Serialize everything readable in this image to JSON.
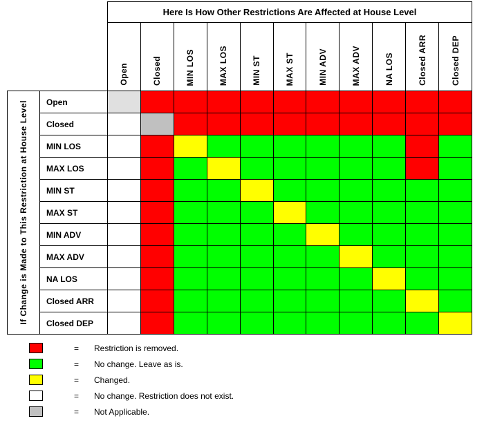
{
  "title": "Here Is How Other Restrictions Are Affected at House Level",
  "side_label": "If Change is Made to This Restriction at House Level",
  "equals_sign": "=",
  "columns": [
    "Open",
    "Closed",
    "MIN LOS",
    "MAX LOS",
    "MIN ST",
    "MAX ST",
    "MIN ADV",
    "MAX ADV",
    "NA LOS",
    "Closed ARR",
    "Closed DEP"
  ],
  "rows": [
    {
      "label": "Open",
      "cells": [
        "gray_light",
        "red",
        "red",
        "red",
        "red",
        "red",
        "red",
        "red",
        "red",
        "red",
        "red"
      ]
    },
    {
      "label": "Closed",
      "cells": [
        "white",
        "gray",
        "red",
        "red",
        "red",
        "red",
        "red",
        "red",
        "red",
        "red",
        "red"
      ]
    },
    {
      "label": "MIN LOS",
      "cells": [
        "white",
        "red",
        "yellow",
        "green",
        "green",
        "green",
        "green",
        "green",
        "green",
        "red",
        "green"
      ]
    },
    {
      "label": "MAX LOS",
      "cells": [
        "white",
        "red",
        "green",
        "yellow",
        "green",
        "green",
        "green",
        "green",
        "green",
        "red",
        "green"
      ]
    },
    {
      "label": "MIN ST",
      "cells": [
        "white",
        "red",
        "green",
        "green",
        "yellow",
        "green",
        "green",
        "green",
        "green",
        "green",
        "green"
      ]
    },
    {
      "label": "MAX ST",
      "cells": [
        "white",
        "red",
        "green",
        "green",
        "green",
        "yellow",
        "green",
        "green",
        "green",
        "green",
        "green"
      ]
    },
    {
      "label": "MIN ADV",
      "cells": [
        "white",
        "red",
        "green",
        "green",
        "green",
        "green",
        "yellow",
        "green",
        "green",
        "green",
        "green"
      ]
    },
    {
      "label": "MAX ADV",
      "cells": [
        "white",
        "red",
        "green",
        "green",
        "green",
        "green",
        "green",
        "yellow",
        "green",
        "green",
        "green"
      ]
    },
    {
      "label": "NA LOS",
      "cells": [
        "white",
        "red",
        "green",
        "green",
        "green",
        "green",
        "green",
        "green",
        "yellow",
        "green",
        "green"
      ]
    },
    {
      "label": "Closed ARR",
      "cells": [
        "white",
        "red",
        "green",
        "green",
        "green",
        "green",
        "green",
        "green",
        "green",
        "yellow",
        "green"
      ]
    },
    {
      "label": "Closed DEP",
      "cells": [
        "white",
        "red",
        "green",
        "green",
        "green",
        "green",
        "green",
        "green",
        "green",
        "green",
        "yellow"
      ]
    }
  ],
  "colors": {
    "red": "#FF0000",
    "green": "#00FF00",
    "yellow": "#FFFF00",
    "white": "#FFFFFF",
    "gray": "#C0C0C0",
    "gray_light": "#E0E0E0"
  },
  "legend": [
    {
      "color": "red",
      "meaning": "Restriction is removed."
    },
    {
      "color": "green",
      "meaning": "No change. Leave as is."
    },
    {
      "color": "yellow",
      "meaning": "Changed."
    },
    {
      "color": "white",
      "meaning": "No change. Restriction does not exist."
    },
    {
      "color": "gray",
      "meaning": "Not Applicable."
    }
  ]
}
